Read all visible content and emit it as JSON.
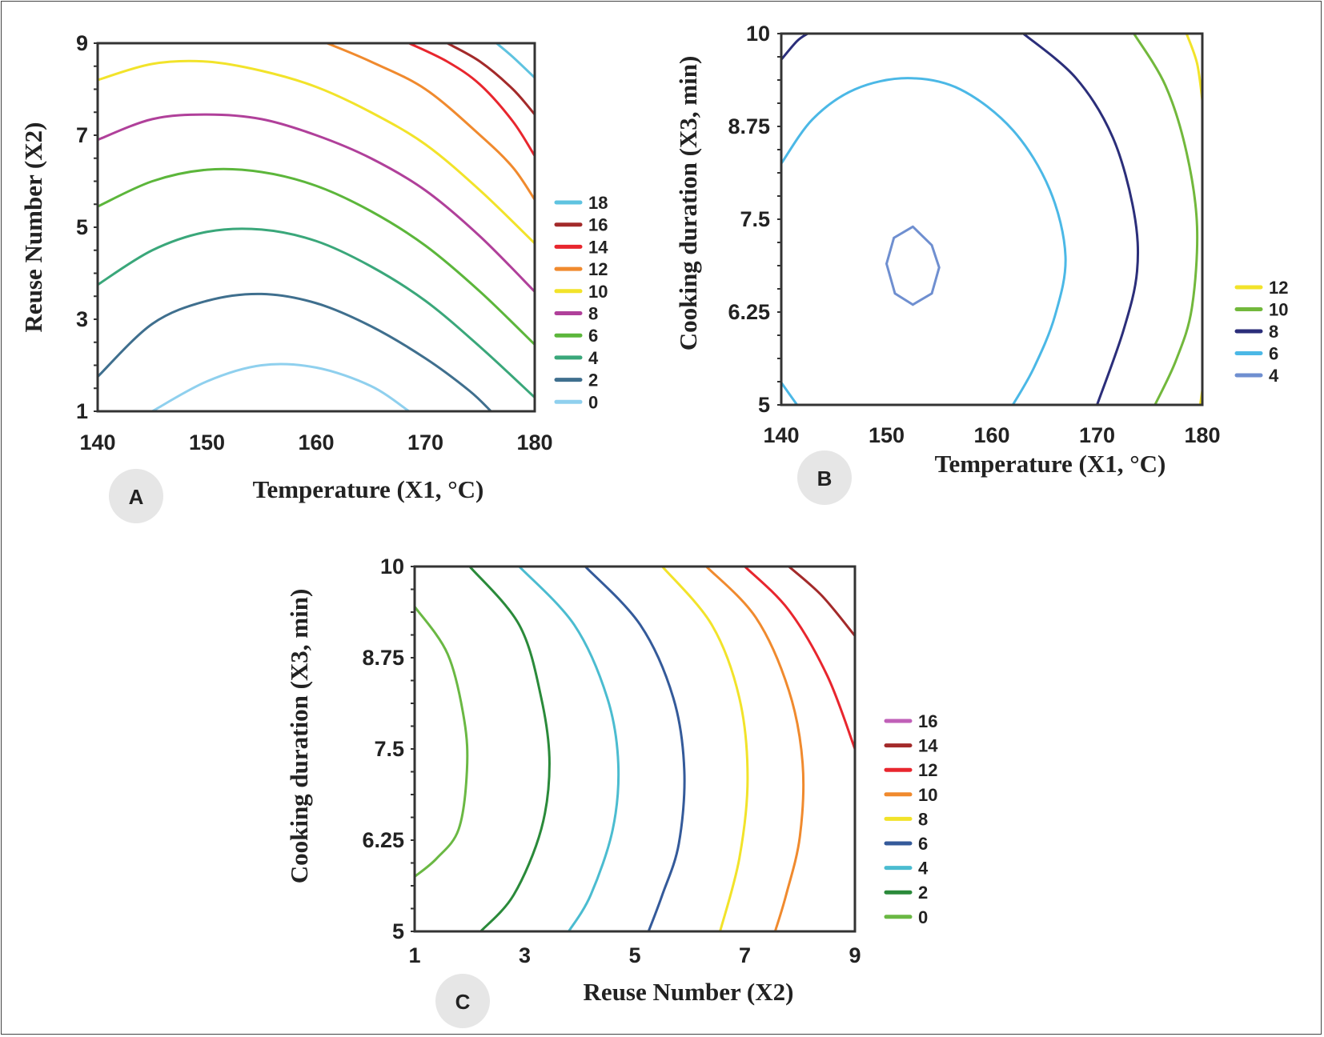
{
  "chart_data": [
    {
      "panel": "A",
      "type": "contour",
      "xlabel": "Temperature (X1, °C)",
      "ylabel": "Reuse Number (X2)",
      "xlim": [
        140,
        180
      ],
      "ylim": [
        1,
        9
      ],
      "xticks": [
        "140",
        "150",
        "160",
        "170",
        "180"
      ],
      "yticks": [
        "1",
        "3",
        "5",
        "7",
        "9"
      ],
      "legend_position": "right",
      "levels": [
        {
          "label": "18",
          "color": "#5fc3e0",
          "points": [
            [
              176.5,
              9
            ],
            [
              178,
              8.7
            ],
            [
              180,
              8.25
            ]
          ]
        },
        {
          "label": "16",
          "color": "#a32a2a",
          "points": [
            [
              172,
              9
            ],
            [
              175,
              8.6
            ],
            [
              178,
              8
            ],
            [
              180,
              7.45
            ]
          ]
        },
        {
          "label": "14",
          "color": "#e8262e",
          "points": [
            [
              168.5,
              9
            ],
            [
              172,
              8.6
            ],
            [
              175,
              8.1
            ],
            [
              178,
              7.3
            ],
            [
              180,
              6.55
            ]
          ]
        },
        {
          "label": "12",
          "color": "#f08a2e",
          "points": [
            [
              161,
              9
            ],
            [
              165,
              8.6
            ],
            [
              170,
              8
            ],
            [
              175,
              7
            ],
            [
              178,
              6.3
            ],
            [
              180,
              5.6
            ]
          ]
        },
        {
          "label": "10",
          "color": "#f2e32a",
          "points": [
            [
              140,
              8.2
            ],
            [
              145,
              8.55
            ],
            [
              150,
              8.6
            ],
            [
              155,
              8.4
            ],
            [
              160,
              8.05
            ],
            [
              165,
              7.5
            ],
            [
              170,
              6.8
            ],
            [
              175,
              5.8
            ],
            [
              180,
              4.65
            ]
          ]
        },
        {
          "label": "8",
          "color": "#b0409a",
          "points": [
            [
              140,
              6.9
            ],
            [
              145,
              7.35
            ],
            [
              150,
              7.45
            ],
            [
              155,
              7.35
            ],
            [
              160,
              7.0
            ],
            [
              165,
              6.5
            ],
            [
              170,
              5.8
            ],
            [
              175,
              4.8
            ],
            [
              180,
              3.6
            ]
          ]
        },
        {
          "label": "6",
          "color": "#5cb63b",
          "points": [
            [
              140,
              5.45
            ],
            [
              145,
              6.0
            ],
            [
              150,
              6.25
            ],
            [
              155,
              6.2
            ],
            [
              160,
              5.9
            ],
            [
              165,
              5.35
            ],
            [
              170,
              4.6
            ],
            [
              175,
              3.6
            ],
            [
              180,
              2.45
            ]
          ]
        },
        {
          "label": "4",
          "color": "#3aa77a",
          "points": [
            [
              140,
              3.75
            ],
            [
              145,
              4.5
            ],
            [
              150,
              4.9
            ],
            [
              155,
              4.95
            ],
            [
              160,
              4.7
            ],
            [
              165,
              4.15
            ],
            [
              170,
              3.4
            ],
            [
              175,
              2.4
            ],
            [
              180,
              1.3
            ]
          ]
        },
        {
          "label": "2",
          "color": "#3f6f8e",
          "points": [
            [
              140,
              1.75
            ],
            [
              145,
              2.9
            ],
            [
              150,
              3.4
            ],
            [
              155,
              3.55
            ],
            [
              160,
              3.35
            ],
            [
              165,
              2.85
            ],
            [
              170,
              2.15
            ],
            [
              174,
              1.45
            ],
            [
              176,
              1
            ]
          ]
        },
        {
          "label": "0",
          "color": "#8fd0ee",
          "points": [
            [
              145,
              1
            ],
            [
              150,
              1.65
            ],
            [
              155,
              2.0
            ],
            [
              160,
              1.95
            ],
            [
              165,
              1.55
            ],
            [
              168.5,
              1
            ]
          ]
        }
      ]
    },
    {
      "panel": "B",
      "type": "contour",
      "xlabel": "Temperature (X1, °C)",
      "ylabel": "Cooking duration (X3, min)",
      "xlim": [
        140,
        180
      ],
      "ylim": [
        5,
        10
      ],
      "xticks": [
        "140",
        "150",
        "160",
        "170",
        "180"
      ],
      "yticks": [
        "5",
        "6.25",
        "7.5",
        "8.75",
        "10"
      ],
      "legend_position": "right",
      "levels": [
        {
          "label": "12",
          "color": "#f2e32a",
          "points": [
            [
              178.5,
              10
            ],
            [
              179.5,
              9.6
            ],
            [
              180,
              9.1
            ]
          ]
        },
        {
          "label": "12",
          "color": "#f2e32a",
          "points": [
            [
              180,
              5.2
            ],
            [
              179.8,
              5
            ]
          ]
        },
        {
          "label": "10",
          "color": "#72b83c",
          "points": [
            [
              173.5,
              10
            ],
            [
              176.5,
              9.3
            ],
            [
              178.5,
              8.4
            ],
            [
              179.5,
              7.4
            ],
            [
              179,
              6.3
            ],
            [
              177.5,
              5.6
            ],
            [
              175.5,
              5
            ]
          ]
        },
        {
          "label": "8",
          "color": "#2b2e7a",
          "points": [
            [
              163,
              10
            ],
            [
              168,
              9.4
            ],
            [
              171.5,
              8.6
            ],
            [
              173.5,
              7.6
            ],
            [
              173.8,
              6.8
            ],
            [
              172.5,
              6.0
            ],
            [
              170,
              5
            ]
          ]
        },
        {
          "label": "6",
          "color": "#4bb8e6",
          "points": [
            [
              140,
              8.25
            ],
            [
              143,
              8.85
            ],
            [
              147,
              9.25
            ],
            [
              152,
              9.4
            ],
            [
              157,
              9.25
            ],
            [
              162,
              8.7
            ],
            [
              165.5,
              7.9
            ],
            [
              167,
              7.0
            ],
            [
              166,
              6.2
            ],
            [
              164,
              5.5
            ],
            [
              162,
              5
            ]
          ]
        },
        {
          "label": "6",
          "color": "#4bb8e6",
          "points": [
            [
              140,
              5.3
            ],
            [
              141.5,
              5
            ]
          ]
        },
        {
          "label": "8",
          "color": "#2b2e7a",
          "points": [
            [
              140,
              9.65
            ],
            [
              141.5,
              9.9
            ],
            [
              142.5,
              10
            ]
          ]
        },
        {
          "label": "4",
          "color": "#6f8fd0",
          "points": [
            [
              152.5,
              7.4
            ],
            [
              154.3,
              7.15
            ],
            [
              155,
              6.85
            ],
            [
              154.3,
              6.5
            ],
            [
              152.5,
              6.35
            ],
            [
              150.8,
              6.5
            ],
            [
              150,
              6.9
            ],
            [
              150.7,
              7.25
            ],
            [
              152.5,
              7.4
            ]
          ]
        }
      ]
    },
    {
      "panel": "C",
      "type": "contour",
      "xlabel": "Reuse Number (X2)",
      "ylabel": "Cooking duration (X3, min)",
      "xlim": [
        1,
        9
      ],
      "ylim": [
        5,
        10
      ],
      "xticks": [
        "1",
        "3",
        "5",
        "7",
        "9"
      ],
      "yticks": [
        "5",
        "6.25",
        "7.5",
        "8.75",
        "10"
      ],
      "legend_position": "right",
      "levels": [
        {
          "label": "16",
          "color": "#c060b8",
          "points": []
        },
        {
          "label": "14",
          "color": "#a32a2a",
          "points": [
            [
              7.8,
              10
            ],
            [
              8.4,
              9.6
            ],
            [
              9,
              9.05
            ]
          ]
        },
        {
          "label": "12",
          "color": "#e8262e",
          "points": [
            [
              7.0,
              10
            ],
            [
              7.8,
              9.4
            ],
            [
              8.5,
              8.5
            ],
            [
              9,
              7.5
            ]
          ]
        },
        {
          "label": "10",
          "color": "#f08a2e",
          "points": [
            [
              6.3,
              10
            ],
            [
              7.2,
              9.3
            ],
            [
              7.8,
              8.3
            ],
            [
              8.05,
              7.3
            ],
            [
              8.0,
              6.3
            ],
            [
              7.75,
              5.5
            ],
            [
              7.55,
              5
            ]
          ]
        },
        {
          "label": "8",
          "color": "#f2e32a",
          "points": [
            [
              5.5,
              10
            ],
            [
              6.4,
              9.2
            ],
            [
              6.9,
              8.2
            ],
            [
              7.05,
              7.1
            ],
            [
              6.9,
              6.0
            ],
            [
              6.55,
              5
            ]
          ]
        },
        {
          "label": "6",
          "color": "#345a9a",
          "points": [
            [
              4.1,
              10
            ],
            [
              5.1,
              9.2
            ],
            [
              5.7,
              8.2
            ],
            [
              5.9,
              7.2
            ],
            [
              5.8,
              6.2
            ],
            [
              5.5,
              5.5
            ],
            [
              5.25,
              5
            ]
          ]
        },
        {
          "label": "4",
          "color": "#4bbcd0",
          "points": [
            [
              2.9,
              10
            ],
            [
              3.9,
              9.2
            ],
            [
              4.5,
              8.2
            ],
            [
              4.7,
              7.3
            ],
            [
              4.6,
              6.4
            ],
            [
              4.2,
              5.5
            ],
            [
              3.8,
              5
            ]
          ]
        },
        {
          "label": "2",
          "color": "#2a8a3a",
          "points": [
            [
              2.0,
              10
            ],
            [
              2.9,
              9.2
            ],
            [
              3.3,
              8.2
            ],
            [
              3.45,
              7.3
            ],
            [
              3.3,
              6.4
            ],
            [
              2.8,
              5.5
            ],
            [
              2.2,
              5
            ]
          ]
        },
        {
          "label": "0",
          "color": "#6ab843",
          "points": [
            [
              1,
              9.45
            ],
            [
              1.6,
              8.8
            ],
            [
              1.9,
              7.9
            ],
            [
              1.95,
              7.2
            ],
            [
              1.8,
              6.4
            ],
            [
              1.4,
              6.0
            ],
            [
              1,
              5.75
            ]
          ]
        }
      ]
    }
  ]
}
